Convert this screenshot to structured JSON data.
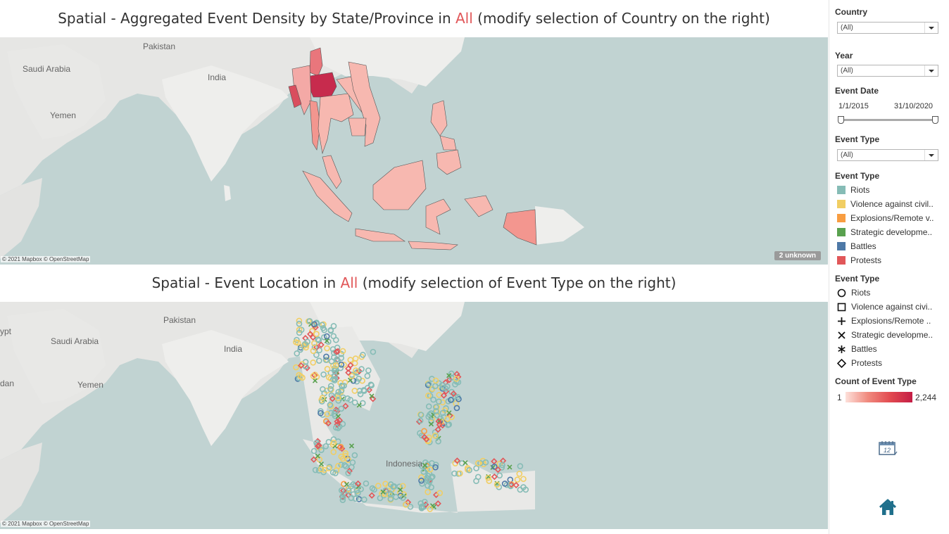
{
  "top": {
    "title_prefix": "Spatial - Aggregated Event Density by State/Province in ",
    "title_highlight": "All",
    "title_suffix": " (modify selection of Country on the right)",
    "credit": "© 2021 Mapbox © OpenStreetMap",
    "unknown_badge": "2 unknown",
    "labels": {
      "pakistan": "Pakistan",
      "india": "India",
      "saudi": "Saudi Arabia",
      "yemen": "Yemen"
    }
  },
  "bottom": {
    "title_prefix": "Spatial - Event Location in ",
    "title_highlight": "All",
    "title_suffix": " (modify selection of Event Type on the right)",
    "credit": "© 2021 Mapbox © OpenStreetMap",
    "labels": {
      "pakistan": "Pakistan",
      "india": "India",
      "saudi": "Saudi Arabia",
      "yemen": "Yemen",
      "egypt": "ypt",
      "sudan": "dan",
      "indonesia": "Indonesia"
    }
  },
  "filters": {
    "country": {
      "label": "Country",
      "value": "(All)"
    },
    "year": {
      "label": "Year",
      "value": "(All)"
    },
    "event_date": {
      "label": "Event Date",
      "start": "1/1/2015",
      "end": "31/10/2020",
      "range": [
        0,
        1
      ]
    },
    "event_type": {
      "label": "Event Type",
      "value": "(All)"
    }
  },
  "color_legend": {
    "title": "Event Type",
    "items": [
      {
        "label": "Riots",
        "color": "#86bcb6"
      },
      {
        "label": "Violence against civil..",
        "color": "#f1ce63"
      },
      {
        "label": "Explosions/Remote v..",
        "color": "#f89d41"
      },
      {
        "label": "Strategic developme..",
        "color": "#59a14f"
      },
      {
        "label": "Battles",
        "color": "#4e79a7"
      },
      {
        "label": "Protests",
        "color": "#e15759"
      }
    ]
  },
  "shape_legend": {
    "title": "Event Type",
    "items": [
      {
        "label": "Riots",
        "icon": "circle-icon"
      },
      {
        "label": "Violence against civi..",
        "icon": "square-icon"
      },
      {
        "label": "Explosions/Remote ..",
        "icon": "plus-icon"
      },
      {
        "label": "Strategic developme..",
        "icon": "x-icon"
      },
      {
        "label": "Battles",
        "icon": "asterisk-icon"
      },
      {
        "label": "Protests",
        "icon": "diamond-icon"
      }
    ]
  },
  "count_legend": {
    "title": "Count of Event Type",
    "min": "1",
    "max": "2,244",
    "colors": [
      "#fde0da",
      "#c41d45"
    ]
  },
  "icons": {
    "calendar": "calendar-icon",
    "home": "home-icon",
    "calendar_number": "12"
  }
}
